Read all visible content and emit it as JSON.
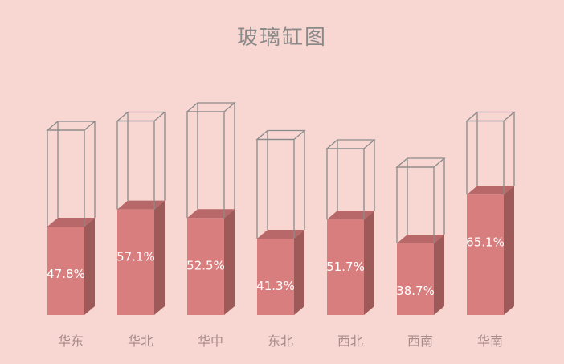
{
  "chart_data": {
    "type": "bar",
    "title": "玻璃缸图",
    "categories": [
      "华东",
      "华北",
      "华中",
      "东北",
      "西北",
      "西南",
      "华南"
    ],
    "values": [
      47.8,
      57.1,
      52.5,
      41.3,
      51.7,
      38.7,
      65.1
    ],
    "value_labels": [
      "47.8%",
      "57.1%",
      "52.5%",
      "41.3%",
      "51.7%",
      "38.7%",
      "65.1%"
    ],
    "container_values": [
      100,
      105,
      110,
      95,
      90,
      80,
      105
    ],
    "unit": "%",
    "grid": false,
    "legend": "none"
  },
  "colors": {
    "background": "#f8d7d2",
    "fill_front": "#d97e7e",
    "fill_side": "#9e5a58",
    "fill_top": "#b86868",
    "glass_stroke": "#8a8a8a",
    "label_text": "#ffffff",
    "axis_text": "#a88a88",
    "title_text": "#8a8a8a"
  }
}
